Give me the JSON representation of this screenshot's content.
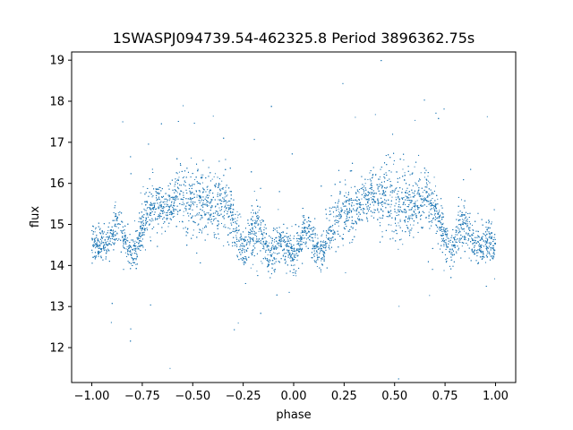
{
  "chart_data": {
    "type": "scatter",
    "title": "1SWASPJ094739.54-462325.8 Period 3896362.75s",
    "xlabel": "phase",
    "ylabel": "flux",
    "xlim": [
      -1.1,
      1.1
    ],
    "ylim": [
      11.15,
      19.2
    ],
    "xticks": [
      -1.0,
      -0.75,
      -0.5,
      -0.25,
      0.0,
      0.25,
      0.5,
      0.75,
      1.0
    ],
    "xtick_labels": [
      "−1.00",
      "−0.75",
      "−0.50",
      "−0.25",
      "0.00",
      "0.25",
      "0.50",
      "0.75",
      "1.00"
    ],
    "yticks": [
      12,
      13,
      14,
      15,
      16,
      17,
      18,
      19
    ],
    "ytick_labels": [
      "12",
      "13",
      "14",
      "15",
      "16",
      "17",
      "18",
      "19"
    ],
    "grid": false,
    "marker_color": "#1f77b4",
    "series": [
      {
        "x": [
          -0.98,
          -0.95,
          -0.93,
          -0.9,
          -0.87,
          -0.84,
          -0.81,
          -0.78,
          -0.75,
          -0.72,
          -0.69,
          -0.66,
          -0.63,
          -0.6,
          -0.57,
          -0.54,
          -0.51,
          -0.48,
          -0.45,
          -0.42,
          -0.39,
          -0.36,
          -0.33,
          -0.3,
          -0.27,
          -0.24,
          -0.21,
          -0.18,
          -0.15,
          -0.12,
          -0.09,
          -0.06,
          -0.03,
          0.0,
          0.03,
          0.06,
          0.09,
          0.12,
          0.15,
          0.18,
          0.21,
          0.24,
          0.27,
          0.3,
          0.33,
          0.36,
          0.39,
          0.42,
          0.45,
          0.48,
          0.51,
          0.54,
          0.57,
          0.6,
          0.63,
          0.66,
          0.69,
          0.72,
          0.75,
          0.78,
          0.81,
          0.84,
          0.87,
          0.9,
          0.93,
          0.96,
          0.99
        ],
        "y": [
          14.5,
          14.6,
          14.4,
          14.8,
          15.0,
          14.7,
          14.3,
          14.4,
          15.0,
          15.3,
          15.4,
          15.5,
          15.4,
          15.6,
          15.9,
          15.7,
          15.5,
          15.6,
          15.5,
          15.4,
          15.5,
          15.6,
          15.4,
          15.1,
          14.6,
          14.4,
          14.8,
          15.0,
          14.6,
          14.2,
          14.5,
          14.6,
          14.4,
          14.3,
          14.5,
          14.9,
          14.6,
          14.3,
          14.4,
          14.9,
          15.1,
          15.2,
          15.4,
          15.3,
          15.5,
          15.6,
          15.7,
          15.6,
          15.8,
          15.6,
          15.5,
          15.6,
          15.4,
          15.5,
          15.6,
          15.7,
          15.5,
          15.1,
          14.6,
          14.4,
          14.8,
          15.0,
          14.7,
          14.5,
          14.4,
          14.6,
          14.5
        ],
        "spread": [
          0.5,
          0.4,
          0.4,
          0.5,
          0.6,
          0.5,
          0.5,
          0.5,
          0.6,
          0.7,
          0.8,
          0.6,
          0.5,
          0.6,
          0.7,
          0.9,
          0.9,
          1.0,
          1.0,
          0.8,
          0.9,
          0.9,
          0.9,
          0.7,
          0.6,
          0.5,
          0.6,
          0.6,
          0.6,
          0.6,
          0.6,
          0.5,
          0.5,
          0.6,
          0.5,
          0.6,
          0.6,
          0.5,
          0.6,
          0.6,
          0.7,
          0.8,
          0.8,
          0.7,
          0.6,
          0.6,
          0.6,
          0.8,
          0.9,
          1.0,
          1.0,
          0.9,
          0.9,
          0.9,
          0.9,
          0.8,
          0.7,
          0.6,
          0.6,
          0.5,
          0.6,
          0.6,
          0.5,
          0.5,
          0.6,
          0.6,
          0.5
        ]
      }
    ]
  }
}
